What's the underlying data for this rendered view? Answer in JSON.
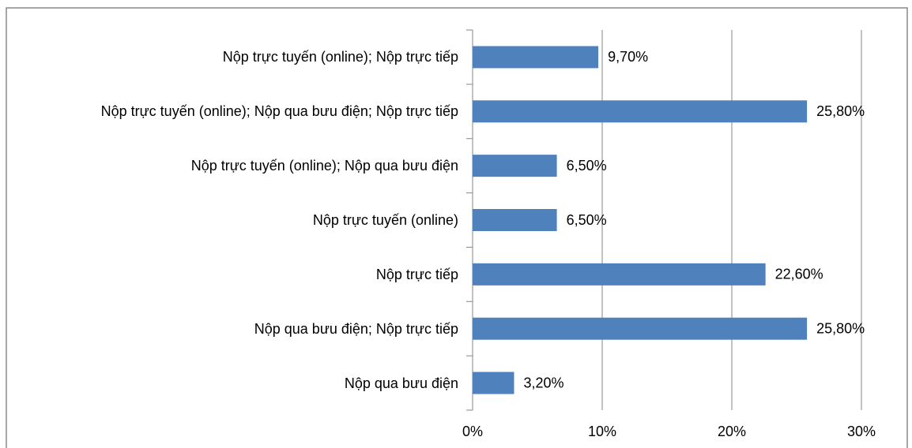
{
  "chart_data": {
    "type": "hbar",
    "categories": [
      "Nộp trực tuyến (online); Nộp trực tiếp",
      "Nộp trực tuyến (online); Nộp qua bưu điện; Nộp trực tiếp",
      "Nộp trực tuyến (online); Nộp qua bưu điện",
      "Nộp trực tuyến (online)",
      "Nộp trực tiếp",
      "Nộp qua bưu điện; Nộp trực tiếp",
      "Nộp qua bưu điện"
    ],
    "values": [
      9.7,
      25.8,
      6.5,
      6.5,
      22.6,
      25.8,
      3.2
    ],
    "value_labels": [
      "9,70%",
      "25,80%",
      "6,50%",
      "6,50%",
      "22,60%",
      "25,80%",
      "3,20%"
    ],
    "color": "#4f81bd",
    "xlim": [
      0,
      30
    ],
    "xticks": [
      {
        "value": 0,
        "label": "0%"
      },
      {
        "value": 10,
        "label": "10%"
      },
      {
        "value": 20,
        "label": "20%"
      },
      {
        "value": 30,
        "label": "30%"
      }
    ],
    "grid": true
  }
}
